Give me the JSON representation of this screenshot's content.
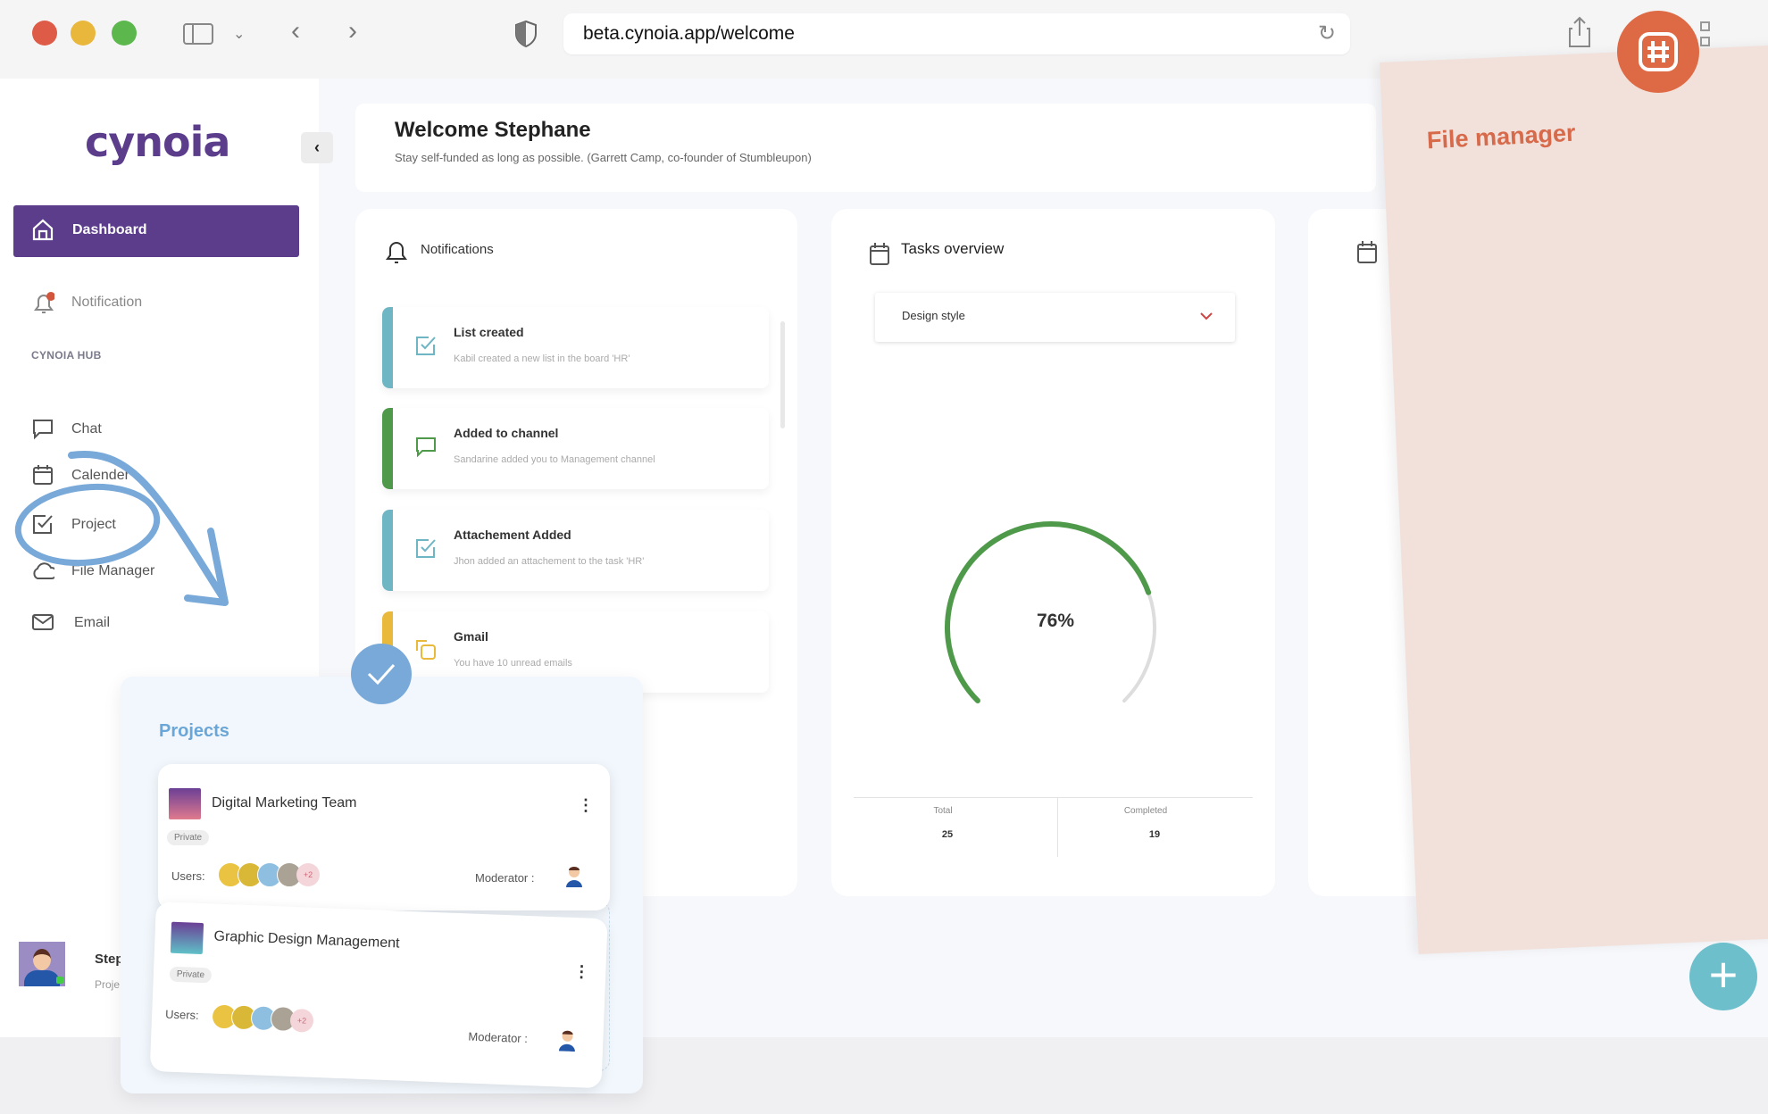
{
  "browser": {
    "url": "beta.cynoia.app/welcome",
    "traffic_colors": [
      "#de5b47",
      "#e9b73b",
      "#5cb84c"
    ]
  },
  "sidebar": {
    "logo": "cynoia",
    "collapse_icon": "chevron-left",
    "active": {
      "label": "Dashboard",
      "icon": "home-icon"
    },
    "notification": {
      "label": "Notification",
      "icon": "bell-icon"
    },
    "section": "CYNOIA HUB",
    "items": [
      {
        "label": "Chat",
        "icon": "chat-icon"
      },
      {
        "label": "Calender",
        "icon": "calendar-icon"
      },
      {
        "label": "Project",
        "icon": "checkbox-icon"
      },
      {
        "label": "File Manager",
        "icon": "cloud-icon"
      },
      {
        "label": "Email",
        "icon": "mail-icon"
      }
    ],
    "user": {
      "name": "Step",
      "role": "Proje"
    }
  },
  "header": {
    "title": "Welcome Stephane",
    "quote": "Stay self-funded as long as possible. (Garrett Camp, co-founder of Stumbleupon)"
  },
  "notifications": {
    "title": "Notifications",
    "items": [
      {
        "title": "List created",
        "desc": "Kabil created a new list in the board 'HR'",
        "color": "#6fb6c4",
        "icon": "checkbox-icon"
      },
      {
        "title": "Added to channel",
        "desc": "Sandarine added you to Management channel",
        "color": "#4f9a4a",
        "icon": "chat-icon"
      },
      {
        "title": "Attachement Added",
        "desc": "Jhon added an attachement to the task 'HR'",
        "color": "#6fb6c4",
        "icon": "checkbox-icon"
      },
      {
        "title": "Gmail",
        "desc": "You have 10 unread emails",
        "color": "#e8b93a",
        "icon": "copy-icon"
      }
    ]
  },
  "tasks": {
    "title": "Tasks overview",
    "select": "Design style",
    "percent_label": "76%",
    "percent": 76,
    "total_label": "Total",
    "total": "25",
    "completed_label": "Completed",
    "completed": "19",
    "accent": "#4f9a4a"
  },
  "file_manager": {
    "title": "File manager"
  },
  "projects": {
    "title": "Projects",
    "cards": [
      {
        "name": "Digital Marketing Team",
        "visibility": "Private",
        "users_label": "Users:",
        "extra": "+2",
        "moderator_label": "Moderator :"
      },
      {
        "name": "Graphic Design Management",
        "visibility": "Private",
        "users_label": "Users:",
        "extra": "+2",
        "moderator_label": "Moderator :"
      }
    ]
  }
}
